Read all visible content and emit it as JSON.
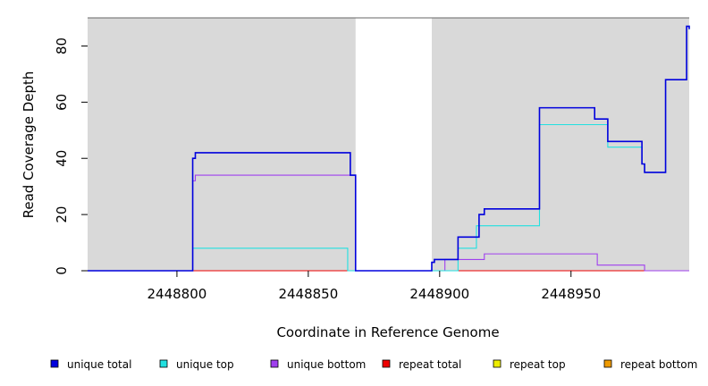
{
  "chart_data": {
    "type": "line",
    "title": "",
    "xlabel": "Coordinate in Reference Genome",
    "ylabel": "Read Coverage Depth",
    "xlim": [
      2448766,
      2448995
    ],
    "ylim": [
      0,
      90
    ],
    "xticks": [
      2448800,
      2448850,
      2448900,
      2448950
    ],
    "yticks": [
      0,
      20,
      40,
      60,
      80
    ],
    "background_color": "#d9d9d9",
    "gap_regions": [
      [
        2448868,
        2448897
      ]
    ],
    "step_style": true,
    "legend_position": "bottom",
    "series": [
      {
        "name": "unique total",
        "color": "#0000dd",
        "x": [
          2448766,
          2448806,
          2448807,
          2448866,
          2448868,
          2448897,
          2448898,
          2448907,
          2448915,
          2448917,
          2448938,
          2448959,
          2448964,
          2448977,
          2448978,
          2448986,
          2448994,
          2448995
        ],
        "y": [
          0,
          40,
          42,
          34,
          0,
          3,
          4,
          12,
          20,
          22,
          58,
          54,
          46,
          38,
          35,
          68,
          87,
          86
        ]
      },
      {
        "name": "unique top",
        "color": "#22e0e0",
        "x": [
          2448766,
          2448806,
          2448865,
          2448907,
          2448914,
          2448917,
          2448938,
          2448964,
          2448977,
          2448978,
          2448986,
          2448994,
          2448995
        ],
        "y": [
          0,
          8,
          0,
          8,
          16,
          16,
          52,
          44,
          38,
          35,
          68,
          87,
          86
        ]
      },
      {
        "name": "unique bottom",
        "color": "#a040ee",
        "x": [
          2448766,
          2448806,
          2448807,
          2448868,
          2448902,
          2448917,
          2448960,
          2448978,
          2448995
        ],
        "y": [
          0,
          32,
          34,
          0,
          4,
          6,
          2,
          0,
          0
        ]
      },
      {
        "name": "repeat total",
        "color": "#ee0000",
        "x": [
          2448766,
          2448995
        ],
        "y": [
          0,
          0
        ]
      },
      {
        "name": "repeat top",
        "color": "#eeee00",
        "x": [
          2448766,
          2448995
        ],
        "y": [
          0,
          0
        ]
      },
      {
        "name": "repeat bottom",
        "color": "#ee9a00",
        "x": [
          2448766,
          2448995
        ],
        "y": [
          0,
          0
        ]
      }
    ]
  }
}
